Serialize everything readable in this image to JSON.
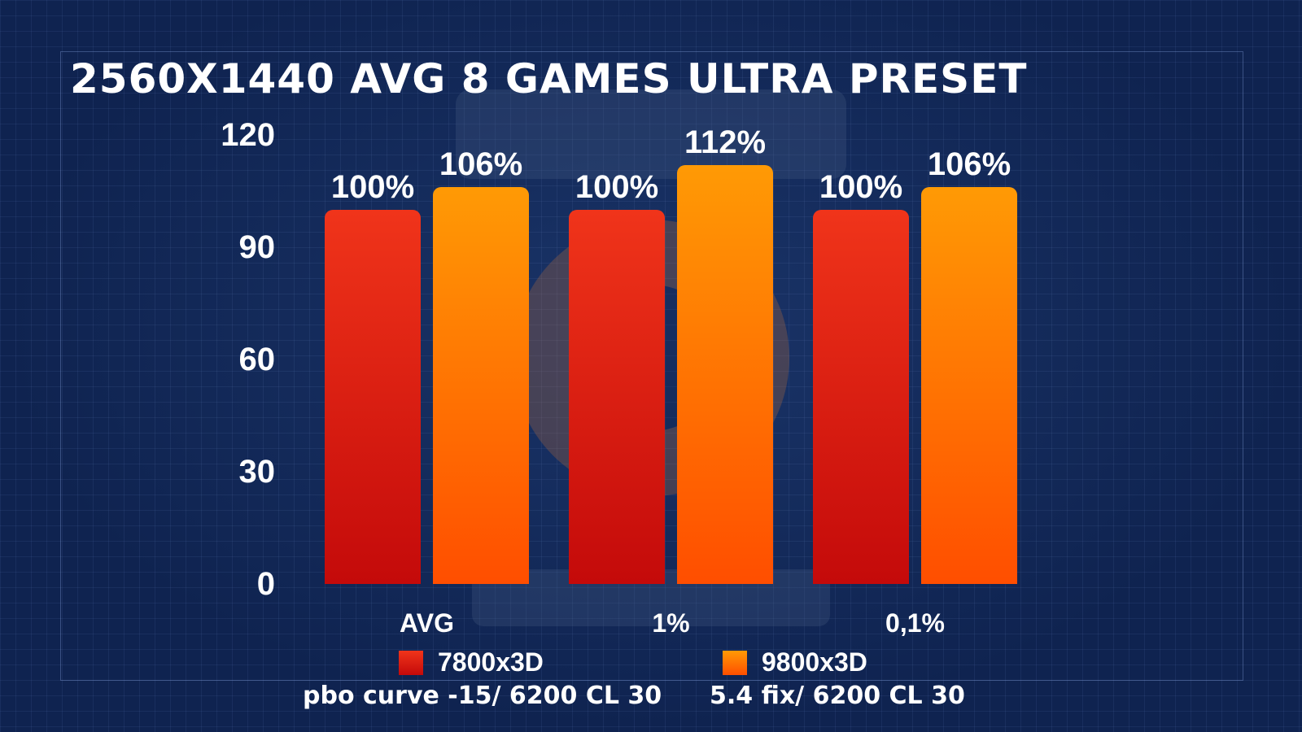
{
  "chart_data": {
    "type": "bar",
    "title": "2560X1440 AVG 8 GAMES ULTRA PRESET",
    "categories": [
      "AVG",
      "1%",
      "0,1%"
    ],
    "series": [
      {
        "name": "7800x3D",
        "values": [
          100,
          100,
          100
        ],
        "labels": [
          "100%",
          "100%",
          "100%"
        ],
        "color": "#e0200f"
      },
      {
        "name": "9800x3D",
        "values": [
          106,
          112,
          106
        ],
        "labels": [
          "106%",
          "112%",
          "106%"
        ],
        "color": "#ff7a00"
      }
    ],
    "yticks": [
      "0",
      "30",
      "60",
      "90",
      "120"
    ],
    "ylim": [
      0,
      120
    ],
    "grid": true,
    "legend_position": "bottom",
    "subtitles": [
      "pbo curve -15/ 6200 CL 30",
      "5.4 fix/ 6200 CL 30"
    ]
  }
}
